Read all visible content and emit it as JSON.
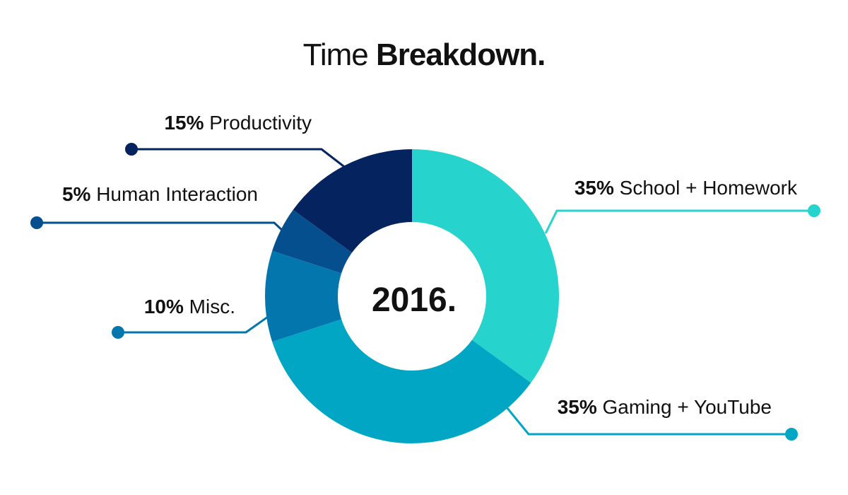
{
  "title": {
    "light": "Time",
    "bold": "Breakdown."
  },
  "chart_data": {
    "type": "pie",
    "center_label": "2016.",
    "slices": [
      {
        "name": "School + Homework",
        "value": 35,
        "pct_label": "35%",
        "color": "#26d3cd"
      },
      {
        "name": "Gaming + YouTube",
        "value": 35,
        "pct_label": "35%",
        "color": "#00a6c3"
      },
      {
        "name": "Misc.",
        "value": 10,
        "pct_label": "10%",
        "color": "#0377ad"
      },
      {
        "name": "Human Interaction",
        "value": 5,
        "pct_label": "5%",
        "color": "#054f8e"
      },
      {
        "name": "Productivity",
        "value": 15,
        "pct_label": "15%",
        "color": "#04235f"
      }
    ]
  }
}
